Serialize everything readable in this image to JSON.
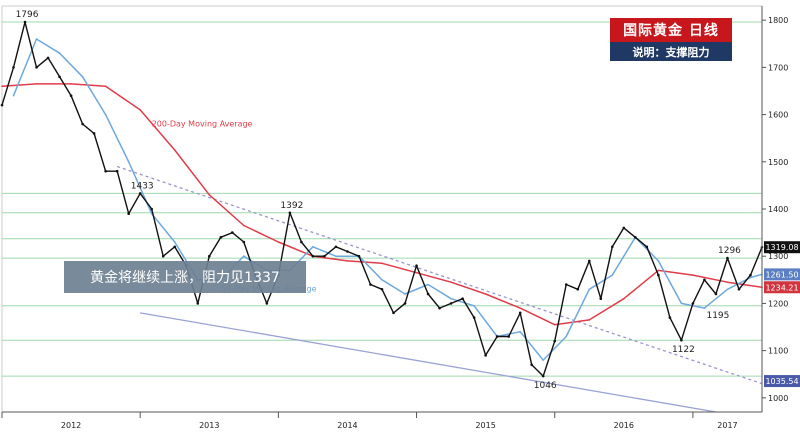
{
  "header": {
    "title": "国际黄金 日线",
    "subtitle": "说明：支撑阻力"
  },
  "callout": "黄金将继续上涨，阻力见1337",
  "colors": {
    "price": "#111111",
    "ma200": "#e03c4a",
    "ma50": "#6fa8dc",
    "trendline_dotted": "#9a93cf",
    "trendline_support": "#9aa2d4",
    "level_line": "#9fd8ae",
    "badge_price": "#111111",
    "badge_ma200": "#d0353f",
    "badge_ma50": "#5b7fc2",
    "badge_support": "#4a5aa6"
  },
  "chart_data": {
    "type": "line",
    "x_axis": {
      "ticks": [
        "2012",
        "2013",
        "2014",
        "2015",
        "2016",
        "2017"
      ],
      "range": [
        "2012-01",
        "2017-07"
      ]
    },
    "y_axis": {
      "ticks": [
        1000,
        1100,
        1200,
        1300,
        1400,
        1500,
        1600,
        1700,
        1800
      ],
      "range": [
        970,
        1830
      ],
      "position": "right"
    },
    "grid": false,
    "series": [
      {
        "name": "",
        "key": "price",
        "x": [
          "2012-01",
          "2012-02",
          "2012-03",
          "2012-04",
          "2012-05",
          "2012-06",
          "2012-07",
          "2012-08",
          "2012-09",
          "2012-10",
          "2012-11",
          "2012-12",
          "2013-01",
          "2013-02",
          "2013-03",
          "2013-04",
          "2013-05",
          "2013-06",
          "2013-07",
          "2013-08",
          "2013-09",
          "2013-10",
          "2013-11",
          "2013-12",
          "2014-01",
          "2014-02",
          "2014-03",
          "2014-04",
          "2014-05",
          "2014-06",
          "2014-07",
          "2014-08",
          "2014-09",
          "2014-10",
          "2014-11",
          "2014-12",
          "2015-01",
          "2015-02",
          "2015-03",
          "2015-04",
          "2015-05",
          "2015-06",
          "2015-07",
          "2015-08",
          "2015-09",
          "2015-10",
          "2015-11",
          "2015-12",
          "2016-01",
          "2016-02",
          "2016-03",
          "2016-04",
          "2016-05",
          "2016-06",
          "2016-07",
          "2016-08",
          "2016-09",
          "2016-10",
          "2016-11",
          "2016-12",
          "2017-01",
          "2017-02",
          "2017-03",
          "2017-04",
          "2017-05",
          "2017-06",
          "2017-07"
        ],
        "values": [
          1620,
          1700,
          1796,
          1700,
          1720,
          1680,
          1640,
          1580,
          1560,
          1480,
          1480,
          1390,
          1433,
          1400,
          1300,
          1320,
          1280,
          1200,
          1300,
          1340,
          1350,
          1330,
          1260,
          1200,
          1260,
          1392,
          1330,
          1300,
          1300,
          1320,
          1310,
          1300,
          1240,
          1230,
          1180,
          1200,
          1280,
          1220,
          1190,
          1200,
          1210,
          1170,
          1090,
          1130,
          1130,
          1180,
          1070,
          1046,
          1120,
          1240,
          1230,
          1290,
          1210,
          1320,
          1360,
          1340,
          1320,
          1260,
          1170,
          1122,
          1200,
          1250,
          1220,
          1296,
          1230,
          1260,
          1319
        ],
        "annotations": [
          {
            "x": "2012-03",
            "value": 1796,
            "label": "1796"
          },
          {
            "x": "2013-01",
            "value": 1433,
            "label": "1433"
          },
          {
            "x": "2014-02",
            "value": 1392,
            "label": "1392"
          },
          {
            "x": "2015-12",
            "value": 1046,
            "label": "1046"
          },
          {
            "x": "2016-12",
            "value": 1122,
            "label": "1122"
          },
          {
            "x": "2017-03",
            "value": 1195,
            "label": "1195"
          },
          {
            "x": "2017-04",
            "value": 1296,
            "label": "1296"
          }
        ]
      },
      {
        "name": "200-Day Moving Average",
        "key": "ma200",
        "x": [
          "2012-01",
          "2012-04",
          "2012-07",
          "2012-10",
          "2013-01",
          "2013-04",
          "2013-07",
          "2013-10",
          "2014-01",
          "2014-04",
          "2014-07",
          "2014-10",
          "2015-01",
          "2015-04",
          "2015-07",
          "2015-10",
          "2016-01",
          "2016-04",
          "2016-07",
          "2016-10",
          "2017-01",
          "2017-04",
          "2017-07"
        ],
        "values": [
          1660,
          1665,
          1665,
          1660,
          1610,
          1525,
          1430,
          1365,
          1330,
          1300,
          1290,
          1285,
          1265,
          1245,
          1220,
          1190,
          1155,
          1165,
          1210,
          1270,
          1260,
          1245,
          1234.21
        ]
      },
      {
        "name": "50-Day Moving Average",
        "key": "ma50",
        "x": [
          "2012-02",
          "2012-04",
          "2012-06",
          "2012-08",
          "2012-10",
          "2012-12",
          "2013-02",
          "2013-04",
          "2013-06",
          "2013-08",
          "2013-10",
          "2013-12",
          "2014-02",
          "2014-04",
          "2014-06",
          "2014-08",
          "2014-10",
          "2014-12",
          "2015-02",
          "2015-04",
          "2015-06",
          "2015-08",
          "2015-10",
          "2015-12",
          "2016-02",
          "2016-04",
          "2016-06",
          "2016-08",
          "2016-10",
          "2016-12",
          "2017-02",
          "2017-04",
          "2017-06",
          "2017-07"
        ],
        "values": [
          1640,
          1760,
          1730,
          1680,
          1600,
          1500,
          1390,
          1330,
          1250,
          1250,
          1300,
          1270,
          1270,
          1320,
          1300,
          1300,
          1250,
          1220,
          1240,
          1210,
          1195,
          1130,
          1140,
          1080,
          1130,
          1230,
          1260,
          1340,
          1290,
          1200,
          1190,
          1230,
          1255,
          1261.5
        ]
      }
    ],
    "reference_lines": [
      {
        "key": "level",
        "value": 1796
      },
      {
        "key": "level",
        "value": 1433
      },
      {
        "key": "level",
        "value": 1392
      },
      {
        "key": "level",
        "value": 1337
      },
      {
        "key": "level",
        "value": 1296
      },
      {
        "key": "level",
        "value": 1195
      },
      {
        "key": "level",
        "value": 1122
      },
      {
        "key": "level",
        "value": 1046
      }
    ],
    "trendlines": [
      {
        "key": "resistance",
        "style": "dotted",
        "from": {
          "x": "2012-11",
          "value": 1490
        },
        "to": {
          "x": "2017-07",
          "value": 1030
        }
      },
      {
        "key": "support",
        "style": "solid",
        "from": {
          "x": "2013-01",
          "value": 1180
        },
        "to": {
          "x": "2017-03",
          "value": 970
        }
      }
    ],
    "series_labels": [
      {
        "text": "200-Day Moving Average",
        "x": "2013-02",
        "value": 1575
      },
      {
        "text": "50-Day Moving Average",
        "x": "2013-08",
        "value": 1225
      }
    ],
    "badges": [
      {
        "text": "1319.08",
        "value": 1319.08,
        "key": "badge_price"
      },
      {
        "text": "1261.50",
        "value": 1261.5,
        "key": "badge_ma50"
      },
      {
        "text": "1234.21",
        "value": 1234.21,
        "key": "badge_ma200"
      },
      {
        "text": "1035.54",
        "value": 1035.54,
        "key": "badge_support"
      }
    ]
  }
}
